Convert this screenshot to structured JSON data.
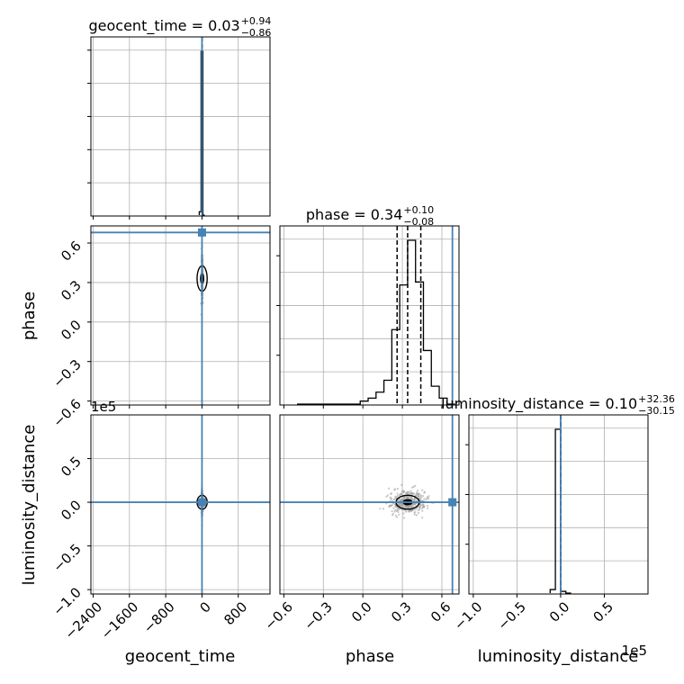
{
  "chart_data": {
    "type": "corner",
    "parameters": [
      {
        "name": "geocent_time",
        "label": "geocent_time",
        "median": "0.03",
        "upper": "+0.94",
        "lower": "−0.86",
        "truth": 0
      },
      {
        "name": "phase",
        "label": "phase",
        "median": "0.34",
        "upper": "+0.10",
        "lower": "−0.08",
        "truth": 0.68
      },
      {
        "name": "luminosity_distance",
        "label": "luminosity_distance",
        "median": "0.10",
        "upper": "+32.36",
        "lower": "−30.15",
        "truth": 0
      }
    ],
    "axes": {
      "geocent_time": {
        "range": [
          -2450,
          1500
        ],
        "ticks": [
          -2400,
          -1600,
          -800,
          0,
          800
        ],
        "tick_labels": [
          "−2400",
          "−1600",
          "−800",
          "0",
          "800"
        ]
      },
      "phase": {
        "range": [
          -0.63,
          0.73
        ],
        "ticks": [
          -0.6,
          -0.3,
          0.0,
          0.3,
          0.6
        ],
        "tick_labels": [
          "−0.6",
          "−0.3",
          "0.0",
          "0.3",
          "0.6"
        ]
      },
      "luminosity_distance": {
        "range": [
          -1.05,
          1.0
        ],
        "ticks": [
          -1.0,
          -0.5,
          0.0,
          0.5
        ],
        "tick_labels": [
          "−1.0",
          "−0.5",
          "0.0",
          "0.5"
        ],
        "offset_label": "1e5"
      }
    },
    "histograms": {
      "geocent_time": {
        "bin_edges": [
          -60,
          -20,
          20,
          60
        ],
        "counts": [
          2,
          97,
          0
        ]
      },
      "phase": {
        "bin_edges": [
          -0.5,
          -0.44,
          -0.38,
          -0.32,
          -0.26,
          -0.2,
          -0.14,
          -0.08,
          -0.02,
          0.04,
          0.1,
          0.16,
          0.22,
          0.28,
          0.34,
          0.4,
          0.46,
          0.52,
          0.58,
          0.64,
          0.7
        ],
        "counts": [
          0,
          0,
          0,
          0,
          0,
          0,
          0,
          0,
          1,
          2,
          4,
          8,
          25,
          40,
          55,
          41,
          18,
          6,
          2,
          0
        ]
      },
      "luminosity_distance": {
        "bin_edges": [
          -0.12,
          -0.06,
          0.0,
          0.06,
          0.12
        ],
        "counts": [
          2,
          93,
          1,
          0
        ]
      }
    },
    "quantile_lines": {
      "geocent_time": [
        -0.83,
        0.03,
        0.97
      ],
      "phase": [
        0.26,
        0.34,
        0.44
      ],
      "luminosity_distance": [
        -30.05,
        0.1,
        32.46
      ]
    },
    "grid": true,
    "truth_color": "#4682b4"
  }
}
